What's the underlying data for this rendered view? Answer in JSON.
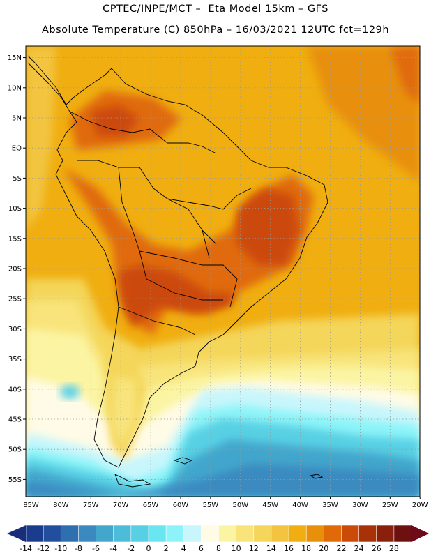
{
  "title_line1": "CPTEC/INPE/MCT –  Eta Model 15km – GFS",
  "title_line2": "Absolute Temperature (C) 850hPa – 16/03/2021 12UTC fct=129h",
  "lat_labels": [
    "15N",
    "10N",
    "5N",
    "EQ",
    "5S",
    "10S",
    "15S",
    "20S",
    "25S",
    "30S",
    "35S",
    "40S",
    "45S",
    "50S",
    "55S"
  ],
  "lon_labels": [
    "85W",
    "80W",
    "75W",
    "70W",
    "65W",
    "60W",
    "55W",
    "50W",
    "45W",
    "40W",
    "35W",
    "30W",
    "25W",
    "20W"
  ],
  "colorbar": {
    "tick_labels": [
      "-14",
      "-12",
      "-10",
      "-8",
      "-6",
      "-4",
      "-2",
      "0",
      "2",
      "4",
      "6",
      "8",
      "10",
      "12",
      "14",
      "16",
      "18",
      "20",
      "22",
      "24",
      "26",
      "28"
    ],
    "colors": [
      "#1b3b8c",
      "#224f9d",
      "#2e6fb0",
      "#3a8ac0",
      "#43a6cc",
      "#4cbcd8",
      "#58d0e4",
      "#6ae6f0",
      "#8cf4f8",
      "#c8f6fc",
      "#fffbe6",
      "#fbf4a2",
      "#f8e47a",
      "#f4d65a",
      "#f2c440",
      "#f0ae10",
      "#e8900a",
      "#e06a08",
      "#cc4a08",
      "#a83208",
      "#88200c",
      "#6e1010"
    ]
  }
}
